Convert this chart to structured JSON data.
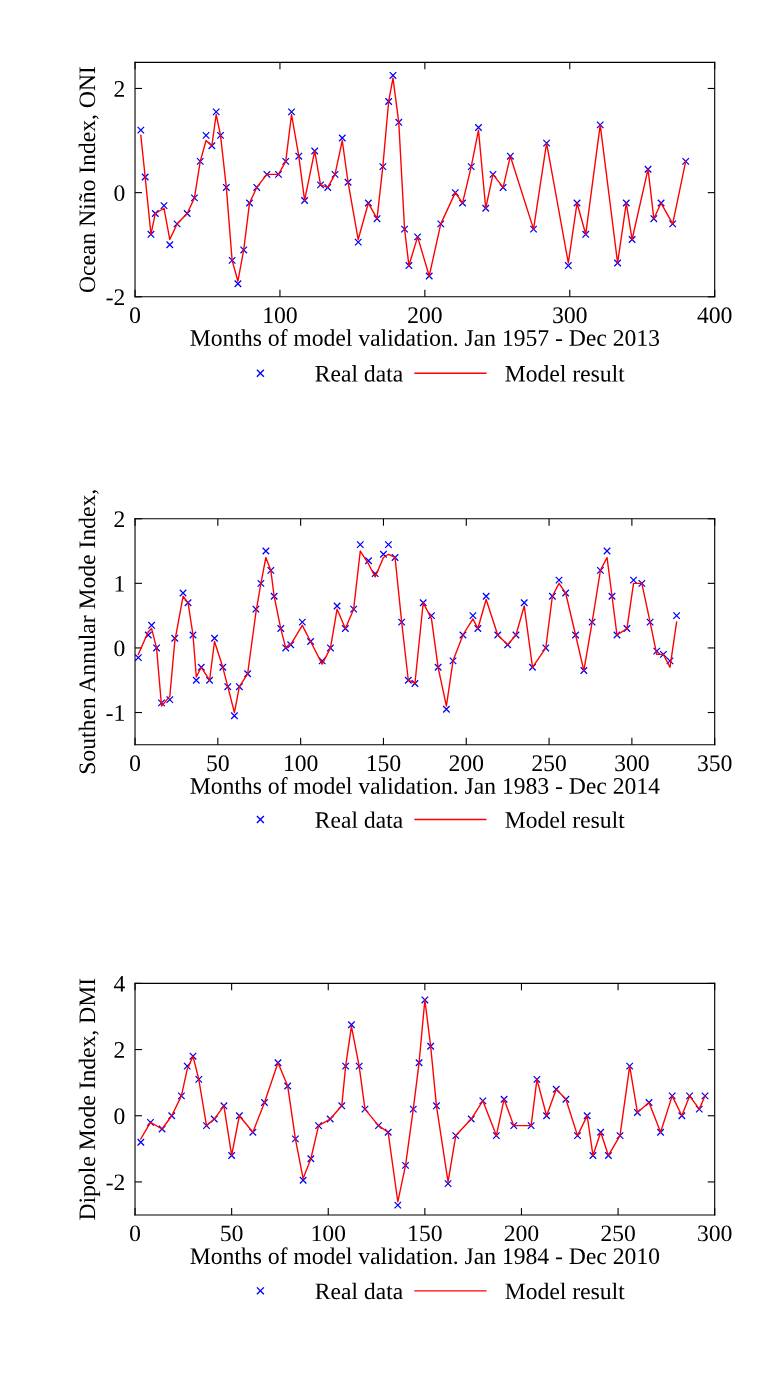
{
  "chart_data": [
    {
      "type": "scatter",
      "xlabel": "Months of model validation. Jan 1957 - Dec 2013",
      "ylabel": "Ocean Niño Index, ONI",
      "xlim": [
        0,
        400
      ],
      "ylim": [
        -2,
        2.5
      ],
      "xticks": [
        0,
        100,
        200,
        300,
        400
      ],
      "yticks": [
        -2,
        0,
        2
      ],
      "grid": false,
      "legend": "bottom",
      "series": [
        {
          "name": "Real data",
          "marker": "cross",
          "color": "#0000ff",
          "x": [
            4,
            7,
            11,
            14,
            20,
            24,
            29,
            36,
            41,
            45,
            49,
            53,
            56,
            59,
            63,
            67,
            71,
            75,
            79,
            84,
            91,
            99,
            104,
            108,
            113,
            117,
            124,
            128,
            133,
            138,
            143,
            147,
            154,
            161,
            167,
            171,
            175,
            178,
            182,
            186,
            189,
            195,
            203,
            211,
            221,
            226,
            232,
            237,
            242,
            247,
            254,
            259,
            275,
            284,
            299,
            305,
            311,
            321,
            333,
            339,
            343,
            354,
            358,
            363,
            371,
            380
          ],
          "values": [
            1.2,
            0.3,
            -0.8,
            -0.4,
            -0.25,
            -1.0,
            -0.6,
            -0.4,
            -0.1,
            0.6,
            1.1,
            0.9,
            1.55,
            1.1,
            0.1,
            -1.3,
            -1.75,
            -1.1,
            -0.2,
            0.1,
            0.35,
            0.35,
            0.6,
            1.55,
            0.7,
            -0.15,
            0.8,
            0.15,
            0.1,
            0.35,
            1.05,
            0.2,
            -0.95,
            -0.2,
            -0.5,
            0.5,
            1.75,
            2.25,
            1.35,
            -0.7,
            -1.4,
            -0.85,
            -1.6,
            -0.6,
            0.0,
            -0.2,
            0.5,
            1.25,
            -0.3,
            0.35,
            0.1,
            0.7,
            -0.7,
            0.95,
            -1.4,
            -0.2,
            -0.8,
            1.3,
            -1.35,
            -0.2,
            -0.9,
            0.45,
            -0.5,
            -0.2,
            -0.6,
            0.6
          ]
        },
        {
          "name": "Model result",
          "type": "line",
          "marker": "none",
          "line_style": "solid",
          "color": "#ff0000",
          "x": [
            4,
            7,
            11,
            14,
            20,
            24,
            29,
            36,
            41,
            45,
            49,
            53,
            56,
            59,
            63,
            67,
            71,
            75,
            79,
            84,
            91,
            99,
            104,
            108,
            113,
            117,
            124,
            128,
            133,
            138,
            143,
            147,
            154,
            161,
            167,
            171,
            175,
            178,
            182,
            186,
            189,
            195,
            203,
            211,
            221,
            226,
            232,
            237,
            242,
            247,
            254,
            259,
            275,
            284,
            299,
            305,
            311,
            321,
            333,
            339,
            343,
            354,
            358,
            363,
            371,
            380
          ],
          "values": [
            1.1,
            0.3,
            -0.8,
            -0.4,
            -0.3,
            -0.9,
            -0.6,
            -0.4,
            -0.1,
            0.6,
            1.0,
            0.9,
            1.5,
            1.1,
            0.1,
            -1.3,
            -1.7,
            -1.1,
            -0.2,
            0.1,
            0.35,
            0.35,
            0.6,
            1.5,
            0.7,
            -0.15,
            0.8,
            0.15,
            0.1,
            0.35,
            1.0,
            0.2,
            -0.9,
            -0.2,
            -0.5,
            0.5,
            1.75,
            2.2,
            1.35,
            -0.7,
            -1.4,
            -0.85,
            -1.6,
            -0.6,
            0.0,
            -0.2,
            0.5,
            1.2,
            -0.3,
            0.35,
            0.1,
            0.7,
            -0.7,
            0.95,
            -1.35,
            -0.2,
            -0.8,
            1.3,
            -1.35,
            -0.2,
            -0.9,
            0.45,
            -0.5,
            -0.2,
            -0.6,
            0.6
          ]
        }
      ]
    },
    {
      "type": "scatter",
      "xlabel": "Months of model validation. Jan 1983 - Dec 2014",
      "ylabel": "Southen Annular Mode Index,",
      "xlim": [
        0,
        350
      ],
      "ylim": [
        -1.5,
        2
      ],
      "xticks": [
        0,
        50,
        100,
        150,
        200,
        250,
        300,
        350
      ],
      "yticks": [
        -1,
        0,
        1,
        2
      ],
      "grid": false,
      "legend": "bottom",
      "series": [
        {
          "name": "Real data",
          "marker": "cross",
          "color": "#0000ff",
          "x": [
            2,
            8,
            10,
            13,
            16,
            21,
            24,
            29,
            32,
            35,
            37,
            40,
            45,
            48,
            53,
            56,
            60,
            63,
            68,
            73,
            76,
            79,
            82,
            84,
            88,
            91,
            94,
            101,
            106,
            113,
            118,
            122,
            127,
            132,
            136,
            141,
            145,
            150,
            153,
            157,
            161,
            165,
            169,
            174,
            179,
            183,
            188,
            192,
            198,
            204,
            207,
            212,
            219,
            225,
            230,
            235,
            240,
            248,
            252,
            256,
            260,
            266,
            271,
            276,
            281,
            285,
            288,
            291,
            297,
            301,
            306,
            311,
            315,
            319,
            323,
            327
          ],
          "values": [
            -0.15,
            0.2,
            0.35,
            0.0,
            -0.85,
            -0.8,
            0.15,
            0.85,
            0.7,
            0.2,
            -0.5,
            -0.3,
            -0.5,
            0.15,
            -0.3,
            -0.6,
            -1.05,
            -0.6,
            -0.4,
            0.6,
            1.0,
            1.5,
            1.2,
            0.8,
            0.3,
            0.0,
            0.05,
            0.4,
            0.1,
            -0.2,
            0.0,
            0.65,
            0.3,
            0.6,
            1.6,
            1.35,
            1.15,
            1.45,
            1.6,
            1.4,
            0.4,
            -0.5,
            -0.55,
            0.7,
            0.5,
            -0.3,
            -0.95,
            -0.2,
            0.2,
            0.5,
            0.3,
            0.8,
            0.2,
            0.05,
            0.2,
            0.7,
            -0.3,
            0.0,
            0.8,
            1.05,
            0.85,
            0.2,
            -0.35,
            0.4,
            1.2,
            1.5,
            0.8,
            0.2,
            0.3,
            1.05,
            1.0,
            0.4,
            -0.05,
            -0.1,
            -0.2,
            0.5
          ]
        },
        {
          "name": "Model result",
          "type": "line",
          "marker": "none",
          "line_style": "solid",
          "color": "#ff0000",
          "x": [
            2,
            8,
            10,
            13,
            16,
            21,
            24,
            29,
            32,
            35,
            37,
            40,
            45,
            48,
            53,
            56,
            60,
            63,
            68,
            73,
            76,
            79,
            82,
            84,
            88,
            91,
            94,
            101,
            106,
            113,
            118,
            122,
            127,
            132,
            136,
            141,
            145,
            150,
            153,
            157,
            161,
            165,
            169,
            174,
            179,
            183,
            188,
            192,
            198,
            204,
            207,
            212,
            219,
            225,
            230,
            235,
            240,
            248,
            252,
            256,
            260,
            266,
            271,
            276,
            281,
            285,
            288,
            291,
            297,
            301,
            306,
            311,
            315,
            319,
            323,
            327
          ],
          "values": [
            -0.1,
            0.25,
            0.3,
            0.0,
            -0.9,
            -0.75,
            0.1,
            0.8,
            0.7,
            0.2,
            -0.45,
            -0.3,
            -0.5,
            0.1,
            -0.3,
            -0.6,
            -1.0,
            -0.6,
            -0.4,
            0.55,
            1.0,
            1.4,
            1.2,
            0.8,
            0.3,
            0.0,
            0.05,
            0.35,
            0.1,
            -0.25,
            0.0,
            0.6,
            0.3,
            0.6,
            1.5,
            1.3,
            1.1,
            1.4,
            1.45,
            1.4,
            0.4,
            -0.5,
            -0.55,
            0.7,
            0.45,
            -0.3,
            -0.9,
            -0.2,
            0.2,
            0.45,
            0.3,
            0.75,
            0.2,
            0.05,
            0.2,
            0.65,
            -0.3,
            0.0,
            0.8,
            1.0,
            0.85,
            0.2,
            -0.35,
            0.4,
            1.2,
            1.4,
            0.8,
            0.2,
            0.3,
            1.0,
            1.0,
            0.4,
            -0.1,
            -0.1,
            -0.3,
            0.4
          ]
        }
      ]
    },
    {
      "type": "scatter",
      "xlabel": "Months of model validation. Jan 1984 - Dec 2010",
      "ylabel": "Dipole Mode Index, DMI",
      "xlim": [
        0,
        300
      ],
      "ylim": [
        -3,
        4
      ],
      "xticks": [
        0,
        50,
        100,
        150,
        200,
        250,
        300
      ],
      "yticks": [
        -2,
        0,
        2,
        4
      ],
      "grid": false,
      "legend": "bottom",
      "series": [
        {
          "name": "Real data",
          "marker": "cross",
          "color": "#0000ff",
          "x": [
            3,
            8,
            14,
            19,
            24,
            27,
            30,
            33,
            37,
            41,
            46,
            50,
            54,
            61,
            67,
            74,
            79,
            83,
            87,
            91,
            95,
            101,
            107,
            109,
            112,
            116,
            119,
            126,
            131,
            136,
            140,
            144,
            147,
            150,
            153,
            156,
            162,
            166,
            174,
            180,
            187,
            191,
            196,
            205,
            208,
            213,
            218,
            223,
            229,
            234,
            237,
            241,
            245,
            251,
            256,
            260,
            266,
            272,
            278,
            283,
            287,
            292,
            295
          ],
          "values": [
            -0.8,
            -0.2,
            -0.4,
            0.0,
            0.6,
            1.5,
            1.8,
            1.1,
            -0.3,
            -0.1,
            0.3,
            -1.2,
            0.0,
            -0.5,
            0.4,
            1.6,
            0.9,
            -0.7,
            -1.95,
            -1.3,
            -0.3,
            -0.1,
            0.3,
            1.5,
            2.75,
            1.5,
            0.2,
            -0.3,
            -0.5,
            -2.7,
            -1.5,
            0.2,
            1.6,
            3.5,
            2.1,
            0.3,
            -2.05,
            -0.6,
            -0.1,
            0.45,
            -0.6,
            0.5,
            -0.3,
            -0.3,
            1.1,
            0.0,
            0.8,
            0.5,
            -0.6,
            0.0,
            -1.2,
            -0.5,
            -1.2,
            -0.6,
            1.5,
            0.1,
            0.4,
            -0.5,
            0.6,
            0.0,
            0.6,
            0.2,
            0.6
          ]
        },
        {
          "name": "Model result",
          "type": "line",
          "marker": "none",
          "line_style": "solid",
          "color": "#ff0000",
          "x": [
            3,
            8,
            14,
            19,
            24,
            27,
            30,
            33,
            37,
            41,
            46,
            50,
            54,
            61,
            67,
            74,
            79,
            83,
            87,
            91,
            95,
            101,
            107,
            109,
            112,
            116,
            119,
            126,
            131,
            136,
            140,
            144,
            147,
            150,
            153,
            156,
            162,
            166,
            174,
            180,
            187,
            191,
            196,
            205,
            208,
            213,
            218,
            223,
            229,
            234,
            237,
            241,
            245,
            251,
            256,
            260,
            266,
            272,
            278,
            283,
            287,
            292,
            295
          ],
          "values": [
            -0.7,
            -0.2,
            -0.4,
            0.0,
            0.6,
            1.4,
            1.8,
            1.1,
            -0.3,
            -0.1,
            0.3,
            -1.2,
            0.0,
            -0.5,
            0.4,
            1.6,
            0.9,
            -0.7,
            -1.9,
            -1.3,
            -0.3,
            -0.1,
            0.3,
            1.5,
            2.7,
            1.5,
            0.2,
            -0.3,
            -0.5,
            -2.6,
            -1.5,
            0.2,
            1.6,
            3.5,
            2.1,
            0.3,
            -2.0,
            -0.6,
            -0.1,
            0.45,
            -0.6,
            0.5,
            -0.3,
            -0.3,
            1.1,
            0.0,
            0.8,
            0.5,
            -0.6,
            0.0,
            -1.2,
            -0.5,
            -1.2,
            -0.6,
            1.5,
            0.1,
            0.4,
            -0.5,
            0.6,
            0.0,
            0.6,
            0.2,
            0.6
          ]
        }
      ]
    }
  ]
}
